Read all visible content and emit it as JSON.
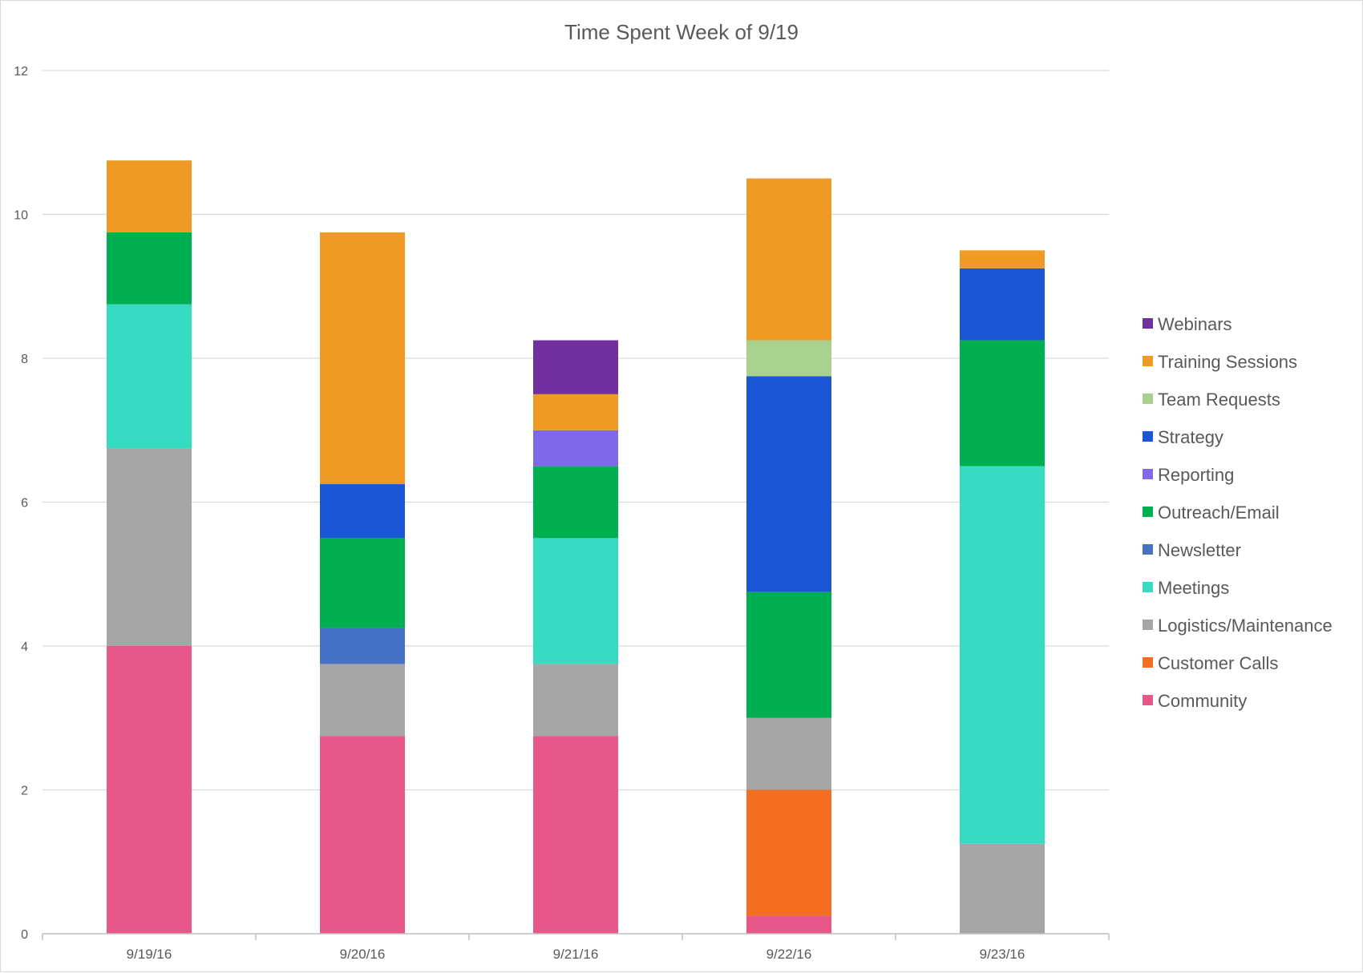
{
  "chart_data": {
    "type": "bar",
    "stacked": true,
    "title": "Time Spent Week of 9/19",
    "xlabel": "",
    "ylabel": "",
    "ylim": [
      0,
      12
    ],
    "yticks": [
      "0",
      "2",
      "4",
      "6",
      "8",
      "10",
      "12"
    ],
    "grid": true,
    "legend_position": "right",
    "categories": [
      "9/19/16",
      "9/20/16",
      "9/21/16",
      "9/22/16",
      "9/23/16"
    ],
    "series": [
      {
        "name": "Community",
        "color": "#E8578A",
        "values": [
          4,
          2.75,
          2.75,
          0.25,
          0
        ]
      },
      {
        "name": "Customer Calls",
        "color": "#F36E20",
        "values": [
          0,
          0,
          0,
          1.75,
          0
        ]
      },
      {
        "name": "Logistics/Maintenance",
        "color": "#A6A6A6",
        "values": [
          2.75,
          1,
          1,
          1,
          1.25
        ]
      },
      {
        "name": "Meetings",
        "color": "#37DBC1",
        "values": [
          2,
          0,
          1.75,
          0,
          5.25
        ]
      },
      {
        "name": "Newsletter",
        "color": "#4472C4",
        "values": [
          0,
          0.5,
          0,
          0,
          0
        ]
      },
      {
        "name": "Outreach/Email",
        "color": "#00B050",
        "values": [
          1,
          1.25,
          1,
          1.75,
          1.75
        ]
      },
      {
        "name": "Reporting",
        "color": "#8068E8",
        "values": [
          0,
          0,
          0.5,
          0,
          0
        ]
      },
      {
        "name": "Strategy",
        "color": "#1A56D6",
        "values": [
          0,
          0.75,
          0,
          3,
          1
        ]
      },
      {
        "name": "Team Requests",
        "color": "#A9D18E",
        "values": [
          0,
          0,
          0,
          0.5,
          0
        ]
      },
      {
        "name": "Training Sessions",
        "color": "#F09A26",
        "values": [
          1,
          3.5,
          0.5,
          2.25,
          0.25
        ]
      },
      {
        "name": "Webinars",
        "color": "#7030A0",
        "values": [
          0,
          0,
          0.75,
          0,
          0
        ]
      }
    ]
  }
}
